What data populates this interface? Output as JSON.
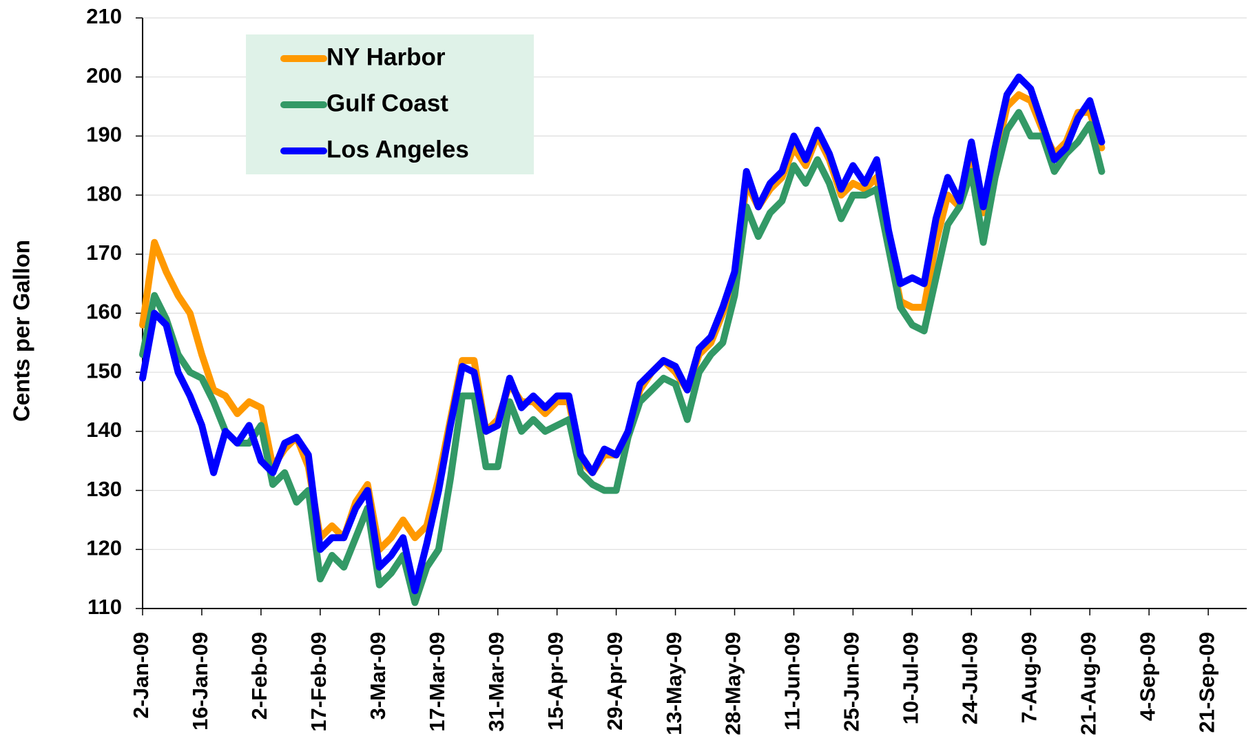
{
  "chart_data": {
    "type": "line",
    "y_axis_label": "Cents per Gallon",
    "categories": [
      "2-Jan-09",
      null,
      null,
      null,
      null,
      "16-Jan-09",
      null,
      null,
      null,
      null,
      "2-Feb-09",
      null,
      null,
      null,
      null,
      "17-Feb-09",
      null,
      null,
      null,
      null,
      "3-Mar-09",
      null,
      null,
      null,
      null,
      "17-Mar-09",
      null,
      null,
      null,
      null,
      "31-Mar-09",
      null,
      null,
      null,
      null,
      "15-Apr-09",
      null,
      null,
      null,
      null,
      "29-Apr-09",
      null,
      null,
      null,
      null,
      "13-May-09",
      null,
      null,
      null,
      null,
      "28-May-09",
      null,
      null,
      null,
      null,
      "11-Jun-09",
      null,
      null,
      null,
      null,
      "25-Jun-09",
      null,
      null,
      null,
      null,
      "10-Jul-09",
      null,
      null,
      null,
      null,
      "24-Jul-09",
      null,
      null,
      null,
      null,
      "7-Aug-09",
      null,
      null,
      null,
      null,
      "21-Aug-09",
      null,
      null,
      null,
      null,
      "4-Sep-09",
      null,
      null,
      null,
      null,
      "21-Sep-09",
      null,
      null,
      null
    ],
    "series": [
      {
        "name": "NY Harbor",
        "color": "#ff9900",
        "values": [
          158,
          172,
          167,
          163,
          160,
          153,
          147,
          146,
          143,
          145,
          144,
          134,
          137,
          139,
          134,
          122,
          124,
          122,
          128,
          131,
          120,
          122,
          125,
          122,
          124,
          132,
          142,
          152,
          152,
          140,
          142,
          148,
          145,
          145,
          143,
          145,
          145,
          135,
          133,
          136,
          136,
          140,
          147,
          150,
          152,
          150,
          147,
          153,
          155,
          160,
          166,
          182,
          178,
          181,
          183,
          188,
          185,
          190,
          186,
          180,
          182,
          181,
          183,
          172,
          162,
          161,
          161,
          172,
          180,
          178,
          187,
          177,
          186,
          195,
          197,
          196,
          191,
          187,
          189,
          194,
          194,
          188,
          null,
          null,
          null,
          null,
          null,
          null,
          null,
          null,
          null,
          null,
          null,
          null
        ]
      },
      {
        "name": "Gulf Coast",
        "color": "#339966",
        "values": [
          153,
          163,
          159,
          153,
          150,
          149,
          145,
          140,
          138,
          138,
          141,
          131,
          133,
          128,
          130,
          115,
          119,
          117,
          122,
          127,
          114,
          116,
          119,
          111,
          117,
          120,
          132,
          146,
          146,
          134,
          134,
          145,
          140,
          142,
          140,
          141,
          142,
          133,
          131,
          130,
          130,
          139,
          145,
          147,
          149,
          148,
          142,
          150,
          153,
          155,
          163,
          178,
          173,
          177,
          179,
          185,
          182,
          186,
          182,
          176,
          180,
          180,
          181,
          171,
          161,
          158,
          157,
          166,
          175,
          178,
          184,
          172,
          183,
          191,
          194,
          190,
          190,
          184,
          187,
          189,
          192,
          184,
          null,
          null,
          null,
          null,
          null,
          null,
          null,
          null,
          null,
          null,
          null,
          null
        ]
      },
      {
        "name": "Los Angeles",
        "color": "#0000ff",
        "values": [
          149,
          160,
          158,
          150,
          146,
          141,
          133,
          140,
          138,
          141,
          135,
          133,
          138,
          139,
          136,
          120,
          122,
          122,
          127,
          130,
          117,
          119,
          122,
          113,
          121,
          130,
          141,
          151,
          150,
          140,
          141,
          149,
          144,
          146,
          144,
          146,
          146,
          136,
          133,
          137,
          136,
          140,
          148,
          150,
          152,
          151,
          147,
          154,
          156,
          161,
          167,
          184,
          178,
          182,
          184,
          190,
          186,
          191,
          187,
          181,
          185,
          182,
          186,
          174,
          165,
          166,
          165,
          176,
          183,
          179,
          189,
          178,
          188,
          197,
          200,
          198,
          192,
          186,
          188,
          193,
          196,
          189,
          null,
          null,
          null,
          null,
          null,
          null,
          null,
          null,
          null,
          null,
          null,
          null
        ]
      }
    ],
    "ylim": [
      110,
      210
    ],
    "yticks": [
      110,
      120,
      130,
      140,
      150,
      160,
      170,
      180,
      190,
      200,
      210
    ],
    "grid": true,
    "legend_position": "upper left"
  }
}
